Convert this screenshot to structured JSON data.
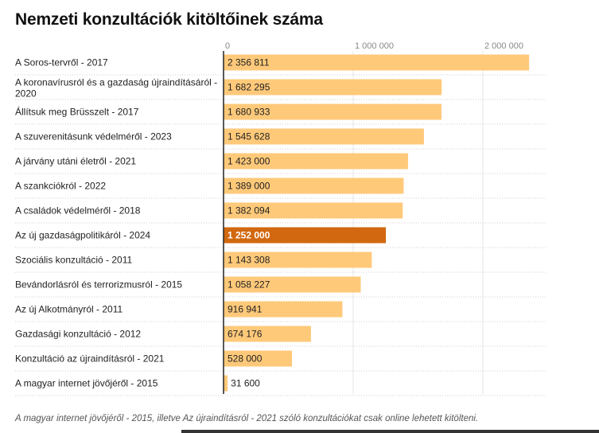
{
  "title": "Nemzeti konzultációk kitöltőinek száma",
  "footnote": "A magyar internet jövőjéről - 2015, illetve Az újraindításról - 2021 szóló konzultációkat csak online lehetett kitölteni.",
  "colors": {
    "bar": "#ffc97a",
    "highlight": "#d2680f",
    "axis": "#222222",
    "grid": "#e6e6e6"
  },
  "chart_data": {
    "type": "bar",
    "orientation": "horizontal",
    "title": "Nemzeti konzultációk kitöltőinek száma",
    "xlim": [
      0,
      2400000
    ],
    "ticks": [
      {
        "value": 0,
        "label": "0"
      },
      {
        "value": 1000000,
        "label": "1 000 000"
      },
      {
        "value": 2000000,
        "label": "2 000 000"
      }
    ],
    "grid": true,
    "highlight_index": 7,
    "categories": [
      [
        "A Soros-tervről - 2017"
      ],
      [
        "A koronavírusról és a gazdaság újraindításáról -",
        "2020"
      ],
      [
        "Állítsuk meg Brüsszelt - 2017"
      ],
      [
        "A szuverenitásunk védelméről - 2023"
      ],
      [
        "A járvány utáni életről - 2021"
      ],
      [
        "A szankciókról - 2022"
      ],
      [
        "A családok védelméről - 2018"
      ],
      [
        "Az új gazdaságpolitikáról - 2024"
      ],
      [
        "Szociális konzultáció - 2011"
      ],
      [
        "Bevándorlásról és terrorizmusról - 2015"
      ],
      [
        "Az új Alkotmányról - 2011"
      ],
      [
        "Gazdasági konzultáció - 2012"
      ],
      [
        "Konzultáció az újraindításról - 2021"
      ],
      [
        "A magyar internet jövőjéről - 2015"
      ]
    ],
    "values": [
      2356811,
      1682295,
      1680933,
      1545628,
      1423000,
      1389000,
      1382094,
      1252000,
      1143308,
      1058227,
      916941,
      674176,
      528000,
      31600
    ],
    "value_labels": [
      "2 356 811",
      "1 682 295",
      "1 680 933",
      "1 545 628",
      "1 423 000",
      "1 389 000",
      "1 382 094",
      "1 252 000",
      "1 143 308",
      "1 058 227",
      "916 941",
      "674 176",
      "528 000",
      "31 600"
    ]
  }
}
